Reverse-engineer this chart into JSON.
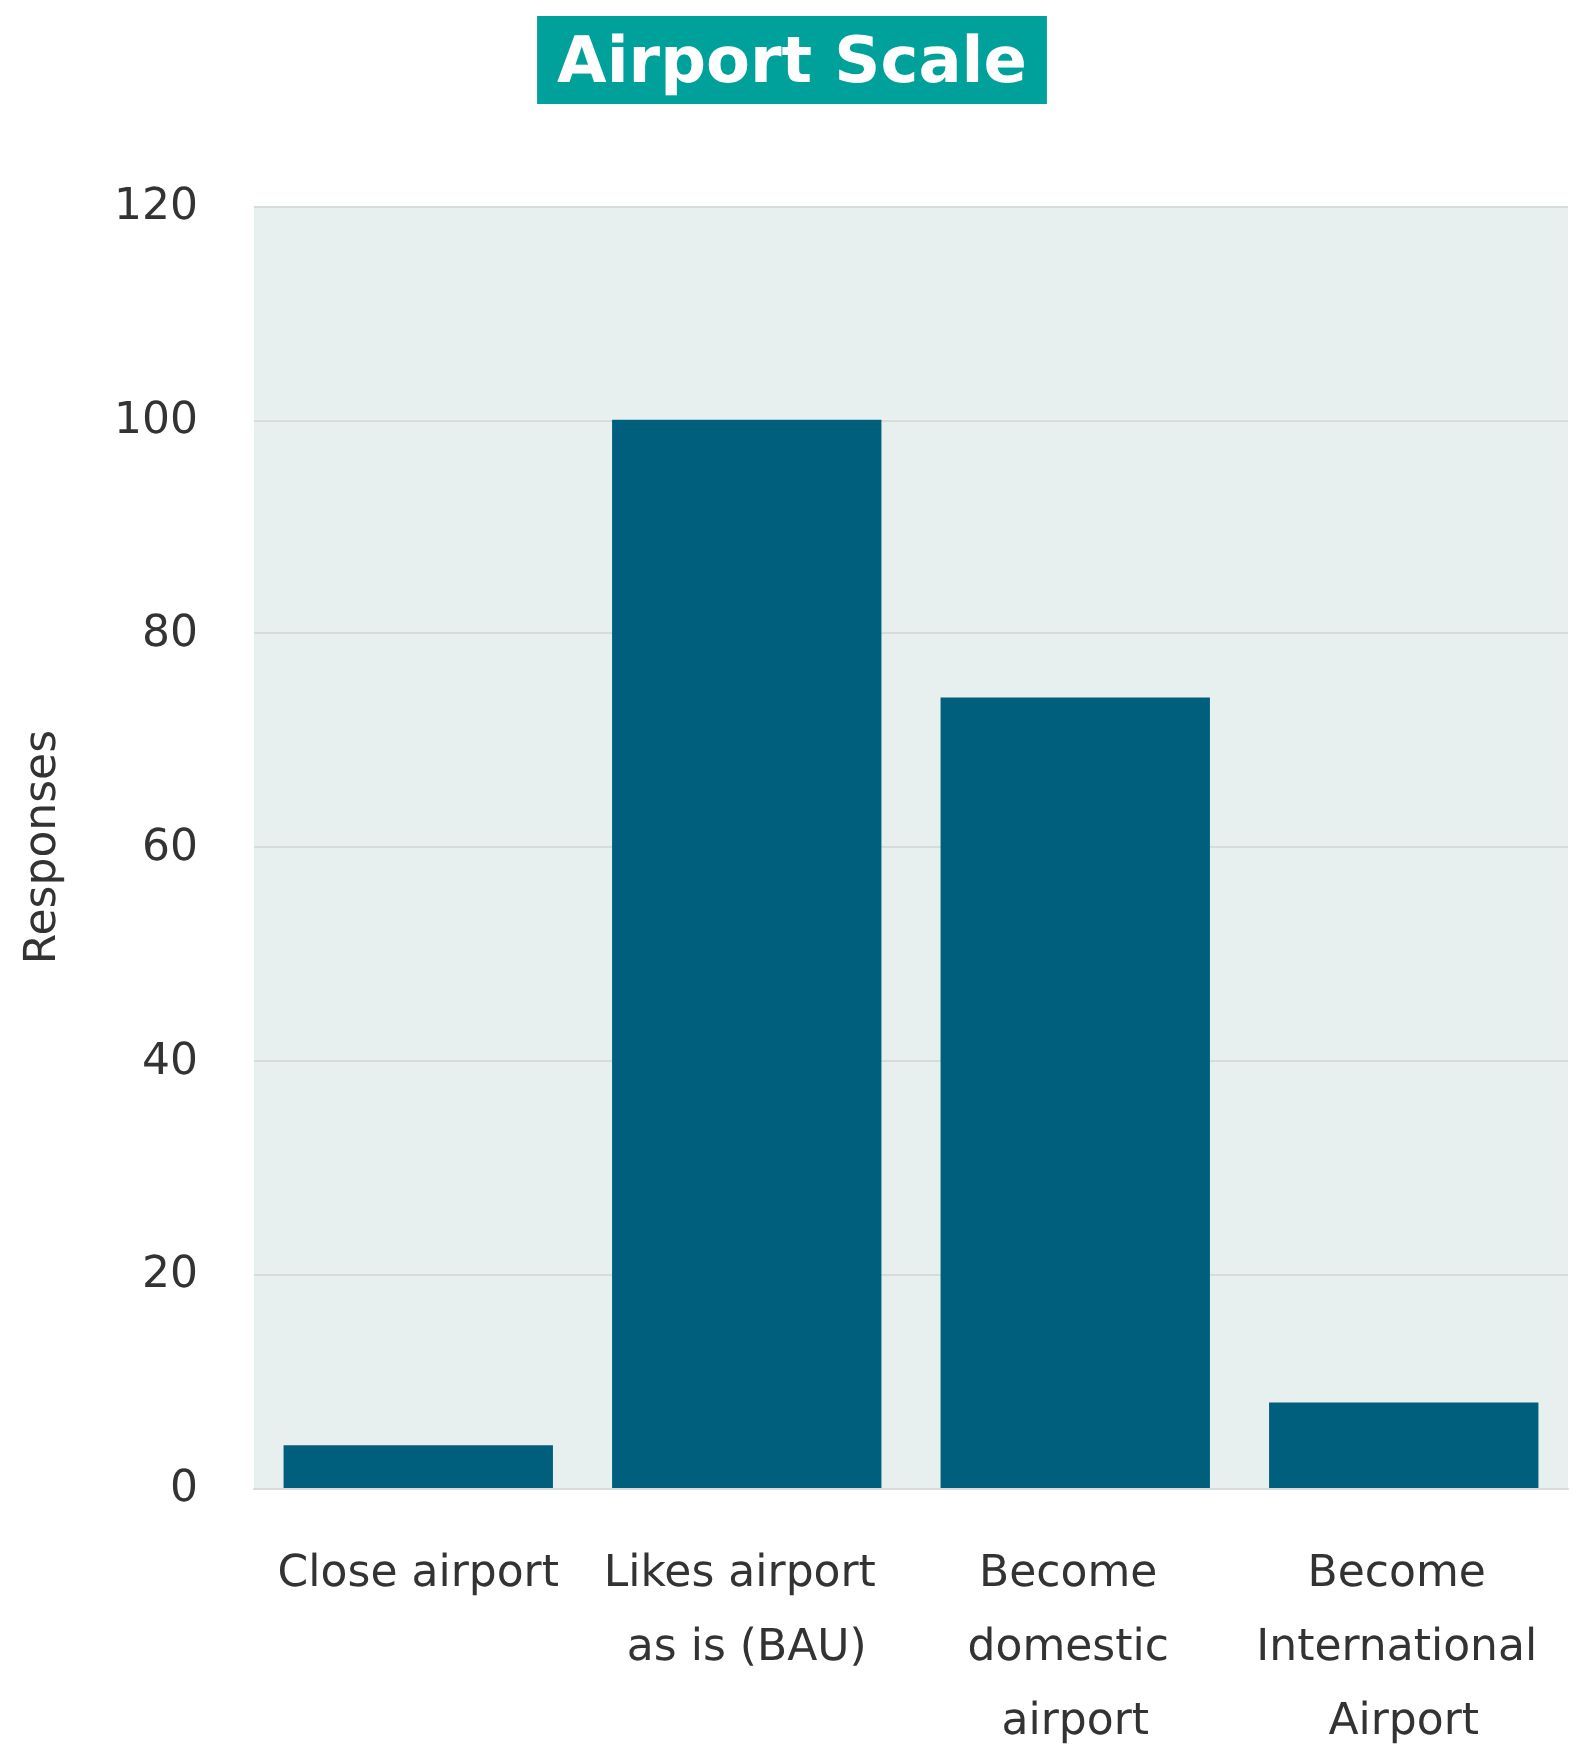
{
  "chart_data": {
    "type": "bar",
    "title": "Airport Scale",
    "ylabel": "Responses",
    "categories": [
      "Close airport",
      "Likes airport as is (BAU)",
      "Become domestic airport",
      "Become International Airport"
    ],
    "values": [
      4,
      100,
      74,
      8
    ],
    "color": "#005f7d",
    "ylim": [
      0,
      120
    ],
    "yticks": [
      0,
      20,
      40,
      60,
      80,
      100,
      120
    ],
    "grid": "y"
  }
}
